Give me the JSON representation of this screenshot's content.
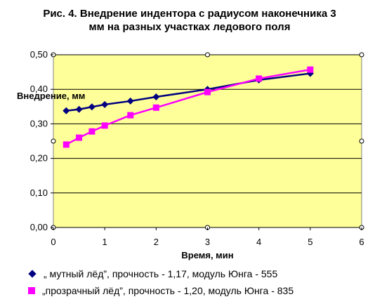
{
  "title": "Рис. 4. Внедрение индентора с радиусом наконечника 3 мм на разных участках ледового поля",
  "chart_data": {
    "type": "line",
    "title": "Рис. 4. Внедрение индентора с радиусом наконечника 3 мм на разных участках ледового поля",
    "xlabel": "Время, мин",
    "ylabel": "Внедрение, мм",
    "xlim": [
      0,
      6
    ],
    "ylim": [
      0,
      0.5
    ],
    "xticks": [
      "0",
      "1",
      "2",
      "3",
      "4",
      "5",
      "6"
    ],
    "yticks": [
      "0,00",
      "0,10",
      "0,20",
      "0,30",
      "0,40",
      "0,50"
    ],
    "grid": "horizontal",
    "legend_position": "bottom",
    "plot_background": "#ffff99",
    "series": [
      {
        "name": "„ мутный лёд”, прочность - 1,17, модуль Юнга - 555",
        "color": "#000080",
        "marker": "diamond",
        "x": [
          0.25,
          0.5,
          0.75,
          1.0,
          1.5,
          2.0,
          3.0,
          4.0,
          5.0
        ],
        "y": [
          0.338,
          0.342,
          0.349,
          0.356,
          0.366,
          0.378,
          0.4,
          0.427,
          0.446
        ]
      },
      {
        "name": "„прозрачный лёд”, прочность - 1,20, модуль Юнга - 835",
        "color": "#ff00ff",
        "marker": "square",
        "x": [
          0.25,
          0.5,
          0.75,
          1.0,
          1.5,
          2.0,
          3.0,
          4.0,
          5.0
        ],
        "y": [
          0.24,
          0.26,
          0.278,
          0.295,
          0.325,
          0.347,
          0.392,
          0.431,
          0.457
        ]
      }
    ]
  }
}
